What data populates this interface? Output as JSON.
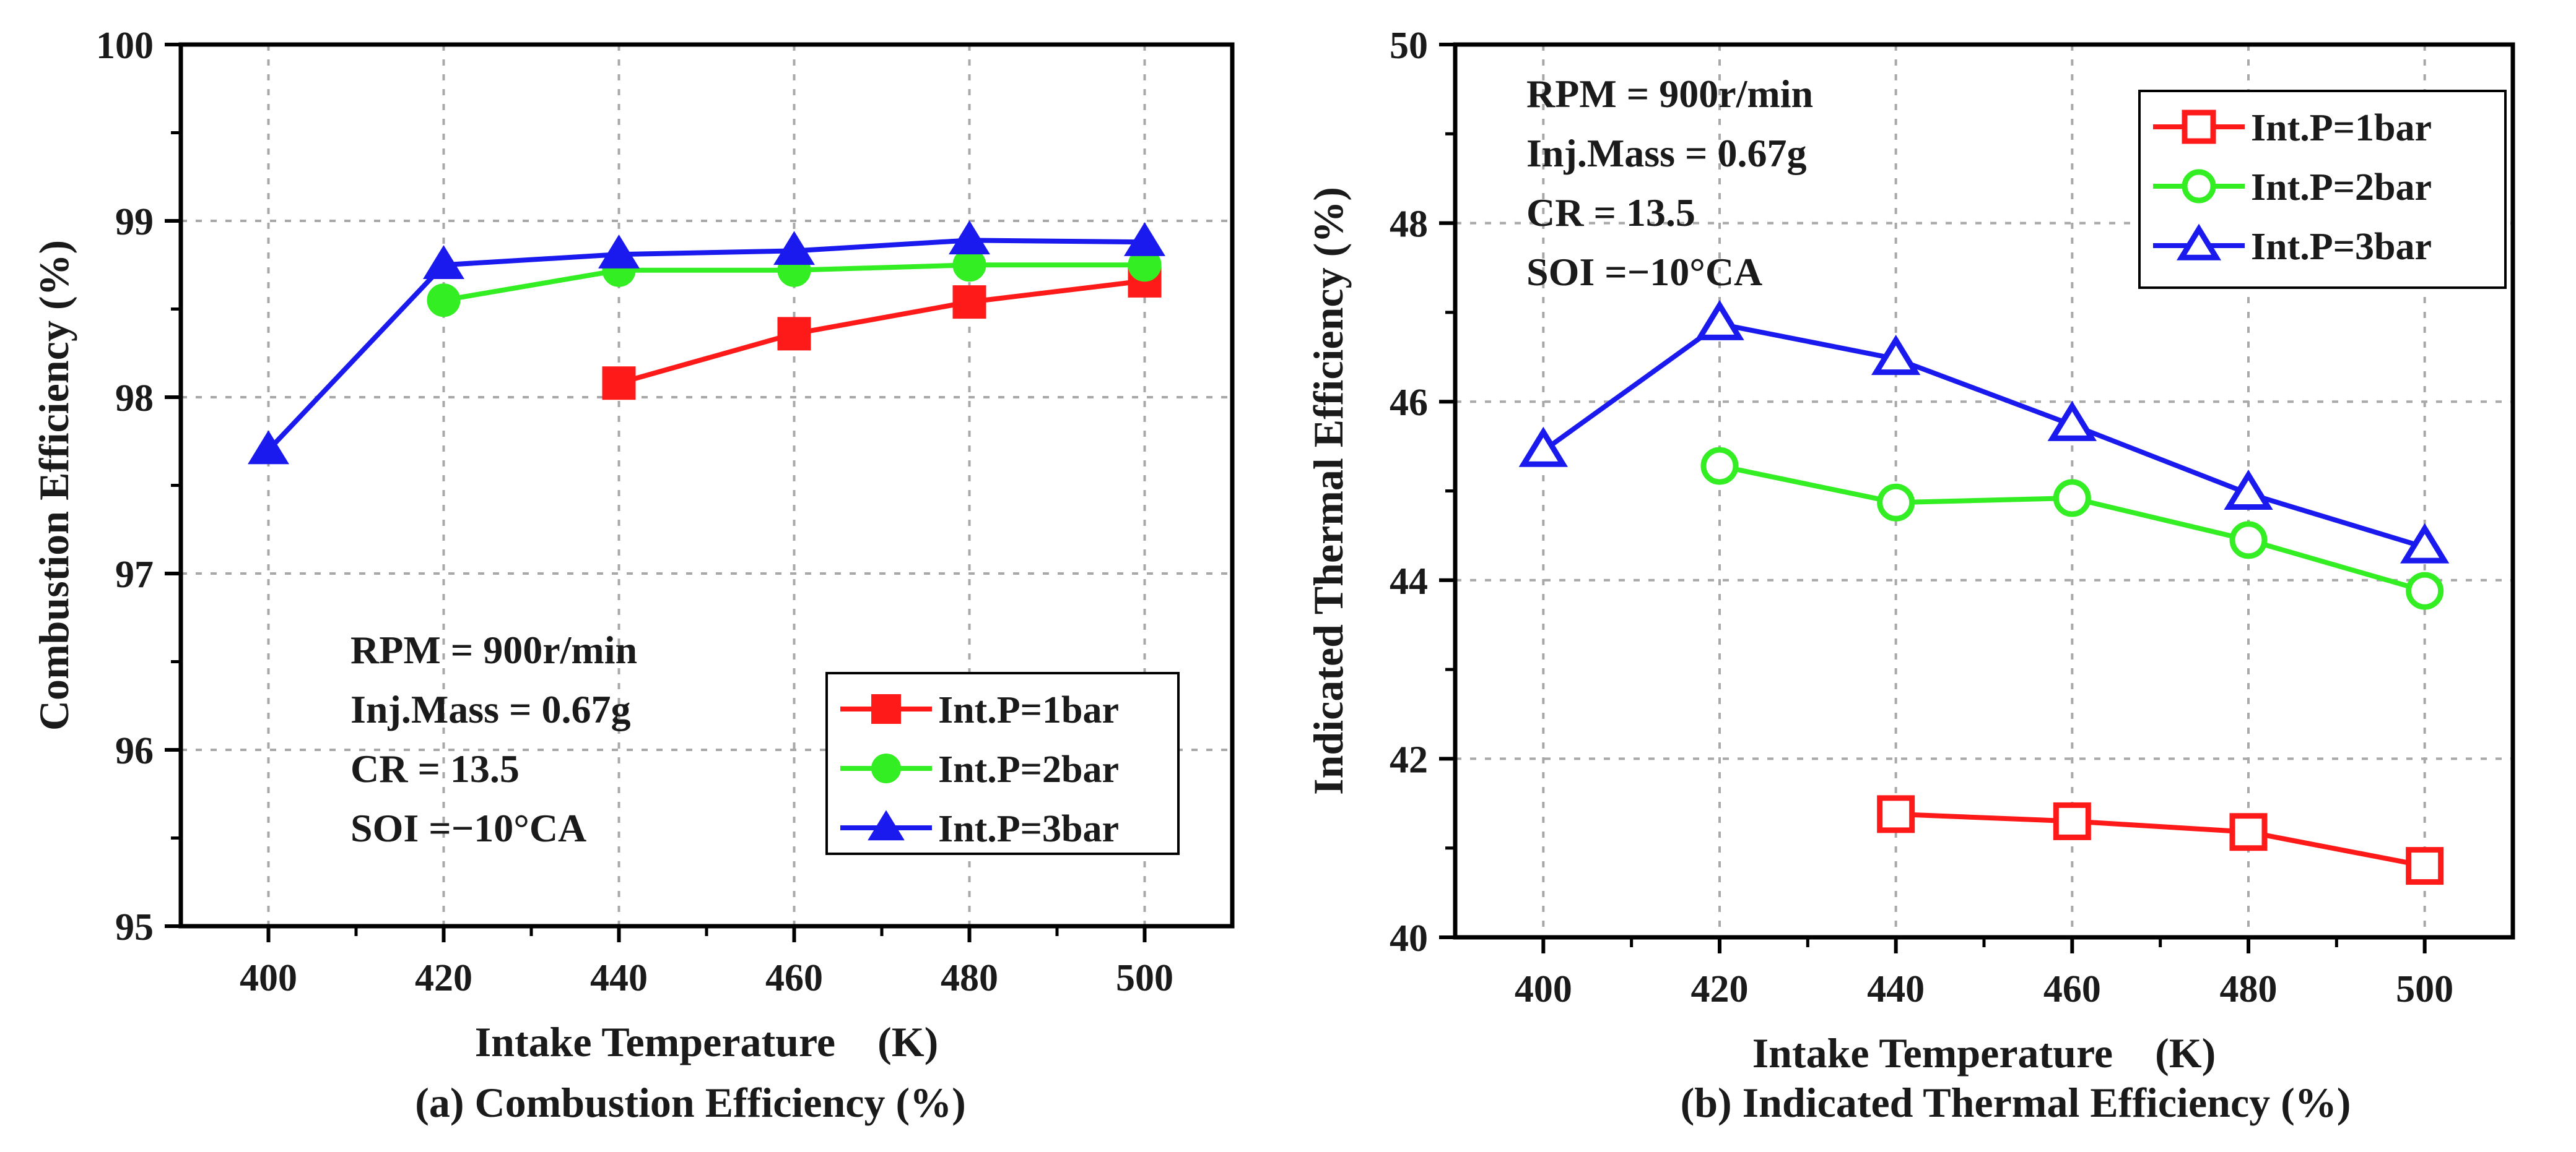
{
  "chart_data": [
    {
      "type": "line",
      "title": "",
      "xlabel": "Intake Temperature　(K)",
      "ylabel": "Combustion Efficiency (%)",
      "xlim": [
        390,
        510
      ],
      "ylim": [
        95,
        100
      ],
      "xticks": [
        400,
        420,
        440,
        460,
        480,
        500
      ],
      "yticks": [
        95,
        96,
        97,
        98,
        99,
        100
      ],
      "grid": true,
      "legend_position": "bottom-right",
      "annotation": [
        "RPM = 900r/min",
        "Inj.Mass = 0.67g",
        "CR = 13.5",
        "SOI =−10°CA"
      ],
      "annotation_position": "bottom-left",
      "series": [
        {
          "name": "Int.P=1bar",
          "color": "#ff1a1a",
          "marker": "filled-square",
          "x": [
            440,
            460,
            480,
            500
          ],
          "y": [
            98.08,
            98.36,
            98.54,
            98.66
          ]
        },
        {
          "name": "Int.P=2bar",
          "color": "#33ee22",
          "marker": "filled-circle",
          "x": [
            420,
            440,
            460,
            480,
            500
          ],
          "y": [
            98.55,
            98.72,
            98.72,
            98.75,
            98.75
          ]
        },
        {
          "name": "Int.P=3bar",
          "color": "#1a1aee",
          "marker": "filled-triangle",
          "x": [
            400,
            420,
            440,
            460,
            480,
            500
          ],
          "y": [
            97.7,
            98.75,
            98.81,
            98.83,
            98.89,
            98.88
          ]
        }
      ],
      "caption": "(a) Combustion Efficiency (%)"
    },
    {
      "type": "line",
      "title": "",
      "xlabel": "Intake Temperature　(K)",
      "ylabel": "Indicated Thermal Efficiency (%)",
      "xlim": [
        390,
        510
      ],
      "ylim": [
        40,
        50
      ],
      "xticks": [
        400,
        420,
        440,
        460,
        480,
        500
      ],
      "yticks": [
        40,
        42,
        44,
        46,
        48,
        50
      ],
      "grid": true,
      "legend_position": "top-right",
      "annotation": [
        "RPM = 900r/min",
        "Inj.Mass = 0.67g",
        "CR = 13.5",
        "SOI =−10°CA"
      ],
      "annotation_position": "top-left",
      "series": [
        {
          "name": "Int.P=1bar",
          "color": "#ff1a1a",
          "marker": "open-square",
          "x": [
            440,
            460,
            480,
            500
          ],
          "y": [
            41.38,
            41.3,
            41.18,
            40.8
          ]
        },
        {
          "name": "Int.P=2bar",
          "color": "#33ee22",
          "marker": "open-circle",
          "x": [
            420,
            440,
            460,
            480,
            500
          ],
          "y": [
            45.28,
            44.87,
            44.92,
            44.45,
            43.88
          ]
        },
        {
          "name": "Int.P=3bar",
          "color": "#1a1aee",
          "marker": "open-triangle",
          "x": [
            400,
            420,
            440,
            460,
            480,
            500
          ],
          "y": [
            45.45,
            46.87,
            46.48,
            45.74,
            44.97,
            44.37
          ]
        }
      ],
      "caption": "(b) Indicated Thermal Efficiency (%)"
    }
  ]
}
